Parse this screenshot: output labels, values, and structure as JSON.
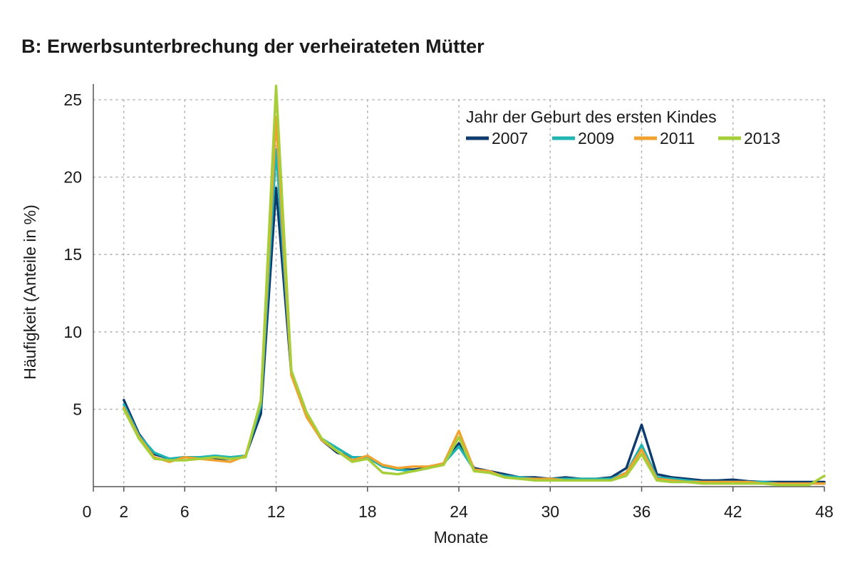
{
  "chart_data": {
    "type": "line",
    "title": "B: Erwerbsunterbrechung der verheirateten Mütter",
    "xlabel": "Monate",
    "ylabel": "Häufigkeit (Anteile in %)",
    "xlim": [
      0,
      48
    ],
    "ylim": [
      0,
      26
    ],
    "x_ticks": [
      0,
      2,
      6,
      12,
      18,
      24,
      30,
      36,
      42,
      48
    ],
    "y_ticks": [
      5,
      10,
      15,
      20,
      25
    ],
    "grid": "dotted",
    "legend": {
      "title": "Jahr der Geburt des ersten Kindes",
      "position": "top-right"
    },
    "x": [
      2,
      3,
      4,
      5,
      6,
      7,
      8,
      9,
      10,
      11,
      12,
      13,
      14,
      15,
      16,
      17,
      18,
      19,
      20,
      21,
      22,
      23,
      24,
      25,
      26,
      27,
      28,
      29,
      30,
      31,
      32,
      33,
      34,
      35,
      36,
      37,
      38,
      39,
      40,
      41,
      42,
      43,
      44,
      45,
      46,
      47,
      48
    ],
    "series": [
      {
        "name": "2007",
        "color": "#0d3b6e",
        "values": [
          5.6,
          3.4,
          2.1,
          1.8,
          1.9,
          1.9,
          1.8,
          1.8,
          2.0,
          4.7,
          19.3,
          7.3,
          4.6,
          3.0,
          2.2,
          1.9,
          1.9,
          1.3,
          1.1,
          1.1,
          1.2,
          1.5,
          2.8,
          1.2,
          1.0,
          0.8,
          0.6,
          0.6,
          0.5,
          0.6,
          0.5,
          0.5,
          0.6,
          1.2,
          4.0,
          0.8,
          0.6,
          0.5,
          0.4,
          0.4,
          0.45,
          0.35,
          0.3,
          0.3,
          0.3,
          0.3,
          0.3
        ]
      },
      {
        "name": "2009",
        "color": "#1fb5b2",
        "values": [
          5.3,
          3.3,
          2.2,
          1.8,
          1.9,
          1.9,
          2.0,
          1.9,
          2.0,
          5.2,
          21.8,
          7.4,
          4.6,
          3.1,
          2.5,
          1.9,
          1.9,
          1.3,
          1.1,
          1.0,
          1.2,
          1.5,
          2.6,
          1.1,
          0.9,
          0.7,
          0.6,
          0.5,
          0.5,
          0.5,
          0.5,
          0.5,
          0.5,
          0.9,
          2.7,
          0.6,
          0.5,
          0.4,
          0.3,
          0.3,
          0.3,
          0.3,
          0.3,
          0.2,
          0.2,
          0.2,
          0.2
        ]
      },
      {
        "name": "2011",
        "color": "#f0a22e",
        "values": [
          5.1,
          3.2,
          1.9,
          1.6,
          1.9,
          1.8,
          1.7,
          1.6,
          2.0,
          5.5,
          23.9,
          7.2,
          4.5,
          3.0,
          2.3,
          1.7,
          2.0,
          1.4,
          1.2,
          1.3,
          1.3,
          1.5,
          3.6,
          1.1,
          1.0,
          0.6,
          0.5,
          0.5,
          0.5,
          0.4,
          0.4,
          0.4,
          0.4,
          0.9,
          2.4,
          0.5,
          0.4,
          0.3,
          0.3,
          0.3,
          0.3,
          0.3,
          0.2,
          0.2,
          0.2,
          0.2,
          0.2
        ]
      },
      {
        "name": "2013",
        "color": "#a6ce39",
        "values": [
          5.0,
          3.1,
          1.8,
          1.7,
          1.7,
          1.8,
          1.9,
          1.8,
          1.9,
          5.6,
          25.9,
          7.5,
          4.8,
          3.1,
          2.3,
          1.6,
          1.8,
          0.9,
          0.8,
          1.0,
          1.2,
          1.4,
          3.2,
          1.0,
          0.9,
          0.6,
          0.5,
          0.4,
          0.4,
          0.4,
          0.4,
          0.4,
          0.4,
          0.7,
          2.1,
          0.4,
          0.3,
          0.3,
          0.2,
          0.2,
          0.2,
          0.2,
          0.2,
          0.1,
          0.1,
          0.1,
          0.7
        ]
      }
    ]
  }
}
